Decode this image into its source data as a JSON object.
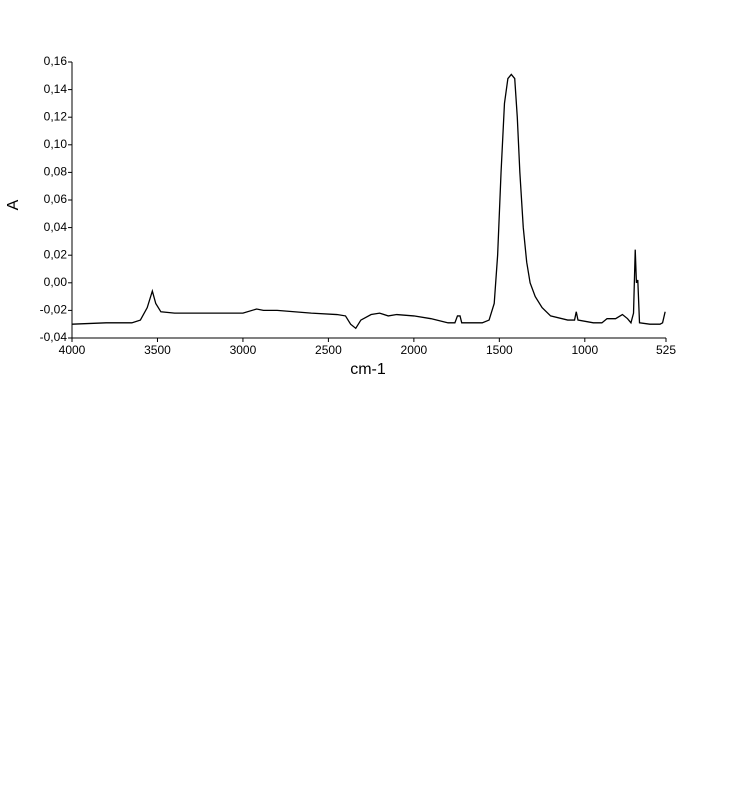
{
  "chart_data": {
    "type": "line",
    "x_label": "cm-1",
    "y_label": "A",
    "x": [
      4000,
      3800,
      3650,
      3600,
      3560,
      3530,
      3510,
      3480,
      3400,
      3000,
      2920,
      2880,
      2800,
      2600,
      2450,
      2400,
      2370,
      2340,
      2310,
      2250,
      2200,
      2150,
      2100,
      2000,
      1900,
      1800,
      1760,
      1745,
      1730,
      1720,
      1600,
      1560,
      1530,
      1510,
      1490,
      1470,
      1450,
      1430,
      1410,
      1395,
      1380,
      1360,
      1340,
      1320,
      1290,
      1250,
      1200,
      1100,
      1060,
      1050,
      1040,
      950,
      900,
      870,
      820,
      780,
      750,
      730,
      715,
      705,
      698,
      690,
      680,
      620,
      560,
      545,
      530
    ],
    "series": [
      {
        "color": "#000000",
        "values": [
          -0.03,
          -0.029,
          -0.029,
          -0.027,
          -0.018,
          -0.006,
          -0.015,
          -0.021,
          -0.022,
          -0.022,
          -0.019,
          -0.02,
          -0.02,
          -0.022,
          -0.023,
          -0.024,
          -0.03,
          -0.033,
          -0.027,
          -0.023,
          -0.022,
          -0.024,
          -0.023,
          -0.024,
          -0.026,
          -0.029,
          -0.029,
          -0.024,
          -0.024,
          -0.029,
          -0.029,
          -0.027,
          -0.015,
          0.02,
          0.08,
          0.13,
          0.148,
          0.151,
          0.148,
          0.12,
          0.08,
          0.04,
          0.015,
          0.0,
          -0.01,
          -0.018,
          -0.024,
          -0.027,
          -0.027,
          -0.021,
          -0.027,
          -0.029,
          -0.029,
          -0.026,
          -0.026,
          -0.023,
          -0.026,
          -0.029,
          -0.022,
          0.024,
          0.0,
          0.002,
          -0.029,
          -0.03,
          -0.03,
          -0.029,
          -0.021
        ]
      }
    ],
    "xlim": [
      4000,
      525
    ],
    "xticks": [
      4000,
      3500,
      3000,
      2500,
      2000,
      1500,
      1000,
      525
    ],
    "ylim": [
      -0.04,
      0.16
    ],
    "yticks": [
      {
        "value": -0.04,
        "label": "-0,04"
      },
      {
        "value": -0.02,
        "label": "-0,02"
      },
      {
        "value": 0.0,
        "label": "0,00"
      },
      {
        "value": 0.02,
        "label": "0,02"
      },
      {
        "value": 0.04,
        "label": "0,04"
      },
      {
        "value": 0.06,
        "label": "0,06"
      },
      {
        "value": 0.08,
        "label": "0,08"
      },
      {
        "value": 0.1,
        "label": "0,10"
      },
      {
        "value": 0.12,
        "label": "0,12"
      },
      {
        "value": 0.14,
        "label": "0,14"
      },
      {
        "value": 0.16,
        "label": "0,16"
      }
    ]
  }
}
